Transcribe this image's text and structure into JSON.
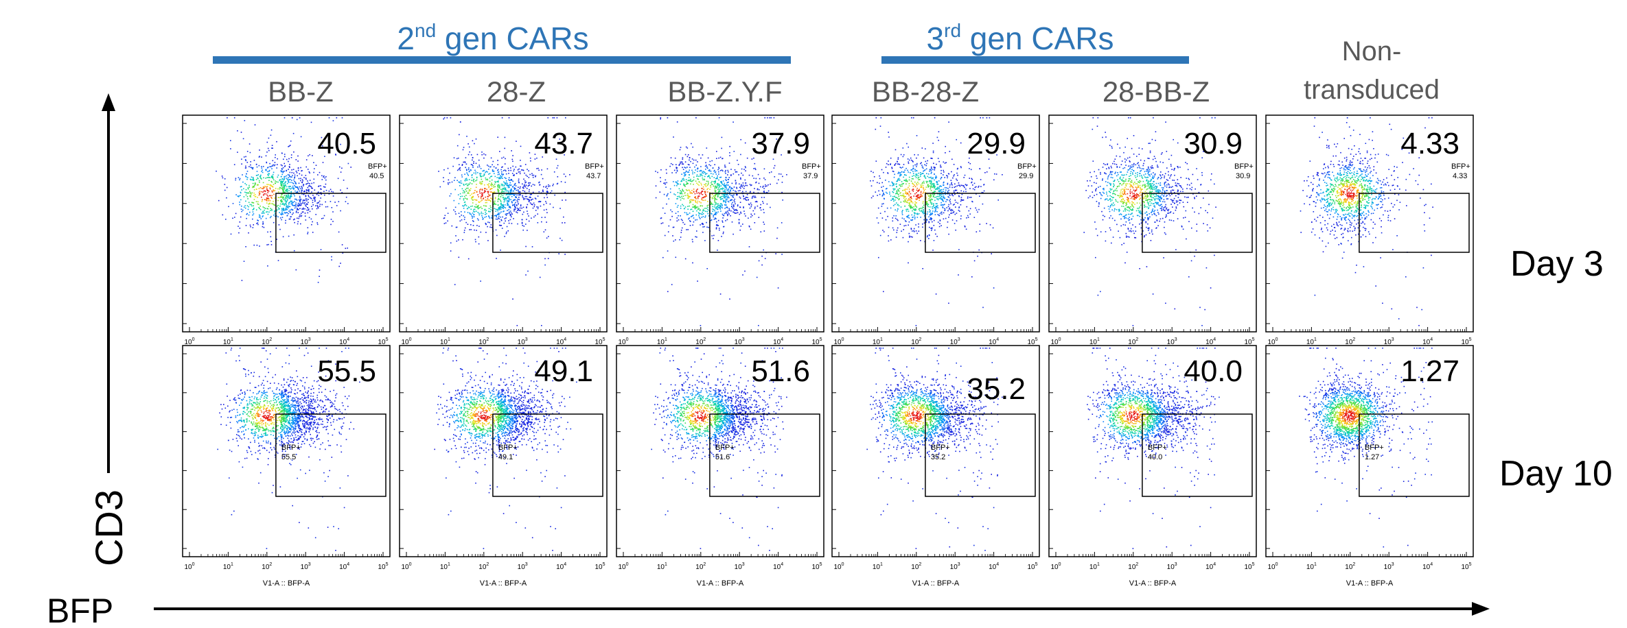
{
  "header": {
    "groups": [
      {
        "label_main": "2",
        "label_sup": "nd",
        "label_rest": " gen CARs",
        "color": "#2e75b6"
      },
      {
        "label_main": "3",
        "label_sup": "rd",
        "label_rest": " gen CARs",
        "color": "#2e75b6"
      }
    ],
    "columns": [
      "BB-Z",
      "28-Z",
      "BB-Z.Y.F",
      "BB-28-Z",
      "28-BB-Z"
    ],
    "nontransduced_line1": "Non-",
    "nontransduced_line2": "transduced"
  },
  "rows": [
    "Day 3",
    "Day 10"
  ],
  "axes": {
    "y_label": "CD3",
    "x_label": "BFP",
    "panel_x_title": "V1-A :: BFP-A",
    "gate_name": "BFP+"
  },
  "colors": {
    "text_gray": "#595959",
    "bar_blue": "#2e75b6",
    "black": "#000000"
  },
  "chart_data": {
    "type": "scatter",
    "subtype": "flow-cytometry-density",
    "x_scale": "log",
    "x_ticks": [
      "10",
      "10",
      "10",
      "10",
      "10",
      "10"
    ],
    "x_tick_exponents": [
      "0",
      "1",
      "2",
      "3",
      "4",
      "5"
    ],
    "xlim": [
      1,
      100000
    ],
    "panels": [
      {
        "row": "Day 3",
        "sample": "BB-Z",
        "bfp_pct": "40.5",
        "big": "40.5"
      },
      {
        "row": "Day 3",
        "sample": "28-Z",
        "bfp_pct": "43.7",
        "big": "43.7"
      },
      {
        "row": "Day 3",
        "sample": "BB-Z.Y.F",
        "bfp_pct": "37.9",
        "big": "37.9"
      },
      {
        "row": "Day 3",
        "sample": "BB-28-Z",
        "bfp_pct": "29.9",
        "big": "29.9"
      },
      {
        "row": "Day 3",
        "sample": "28-BB-Z",
        "bfp_pct": "30.9",
        "big": "30.9"
      },
      {
        "row": "Day 3",
        "sample": "Non-transduced",
        "bfp_pct": "4.33",
        "big": "4.33"
      },
      {
        "row": "Day 10",
        "sample": "BB-Z",
        "bfp_pct": "55.5",
        "big": "55.5"
      },
      {
        "row": "Day 10",
        "sample": "28-Z",
        "bfp_pct": "49.1",
        "big": "49.1"
      },
      {
        "row": "Day 10",
        "sample": "BB-Z.Y.F",
        "bfp_pct": "51.6",
        "big": "51.6"
      },
      {
        "row": "Day 10",
        "sample": "BB-28-Z",
        "bfp_pct": "35.2",
        "big": "35.2"
      },
      {
        "row": "Day 10",
        "sample": "28-BB-Z",
        "bfp_pct": "40.0",
        "big": "40.0"
      },
      {
        "row": "Day 10",
        "sample": "Non-transduced",
        "bfp_pct": "1.27",
        "big": "1.27"
      }
    ]
  }
}
